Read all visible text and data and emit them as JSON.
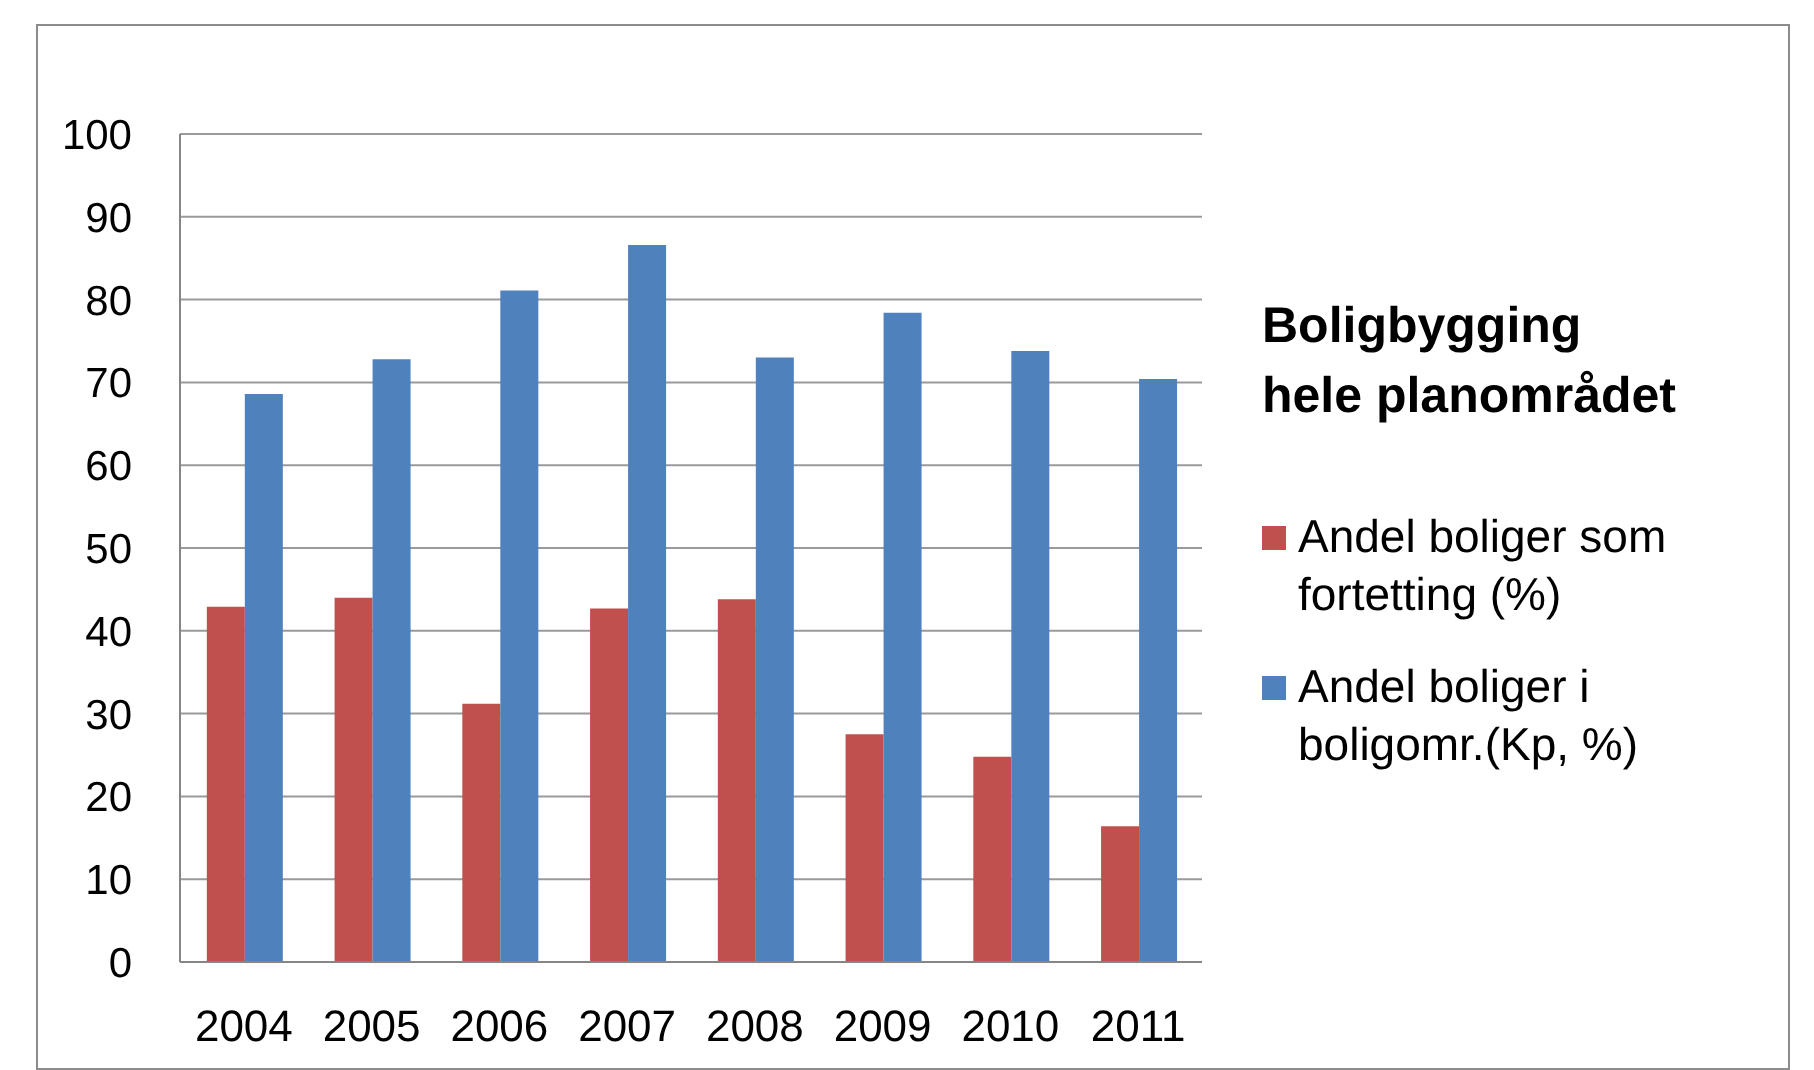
{
  "chart_data": {
    "type": "bar",
    "title": "Boligbygging\nhele planområdet",
    "categories": [
      "2004",
      "2005",
      "2006",
      "2007",
      "2008",
      "2009",
      "2010",
      "2011"
    ],
    "series": [
      {
        "name": "Andel boliger som fortetting (%)",
        "color": "#c0504d",
        "values": [
          42.9,
          44.0,
          31.2,
          42.7,
          43.8,
          27.5,
          24.8,
          16.4
        ]
      },
      {
        "name": "Andel boliger i boligomr.(Kp, %)",
        "color": "#4f81bd",
        "values": [
          68.6,
          72.8,
          81.1,
          86.6,
          73.0,
          78.4,
          73.8,
          70.4
        ]
      }
    ],
    "ylim": [
      0,
      100
    ],
    "yticks": [
      0,
      10,
      20,
      30,
      40,
      50,
      60,
      70,
      80,
      90,
      100
    ],
    "grid": "y",
    "legend": "right"
  }
}
